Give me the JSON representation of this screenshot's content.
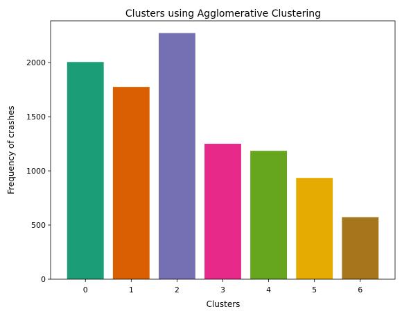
{
  "chart_data": {
    "type": "bar",
    "title": "Clusters using Agglomerative Clustering",
    "xlabel": "Clusters",
    "ylabel": "Frequency of crashes",
    "categories": [
      "0",
      "1",
      "2",
      "3",
      "4",
      "5",
      "6"
    ],
    "values": [
      2005,
      1775,
      2272,
      1250,
      1185,
      935,
      572
    ],
    "colors": [
      "#1b9e77",
      "#d95f02",
      "#7570b3",
      "#e7298a",
      "#66a61e",
      "#e6ab02",
      "#a6761d"
    ],
    "yticks": [
      "0",
      "500",
      "1000",
      "1500",
      "2000"
    ],
    "ylim": [
      0,
      2385
    ],
    "grid": false,
    "legend": false
  }
}
